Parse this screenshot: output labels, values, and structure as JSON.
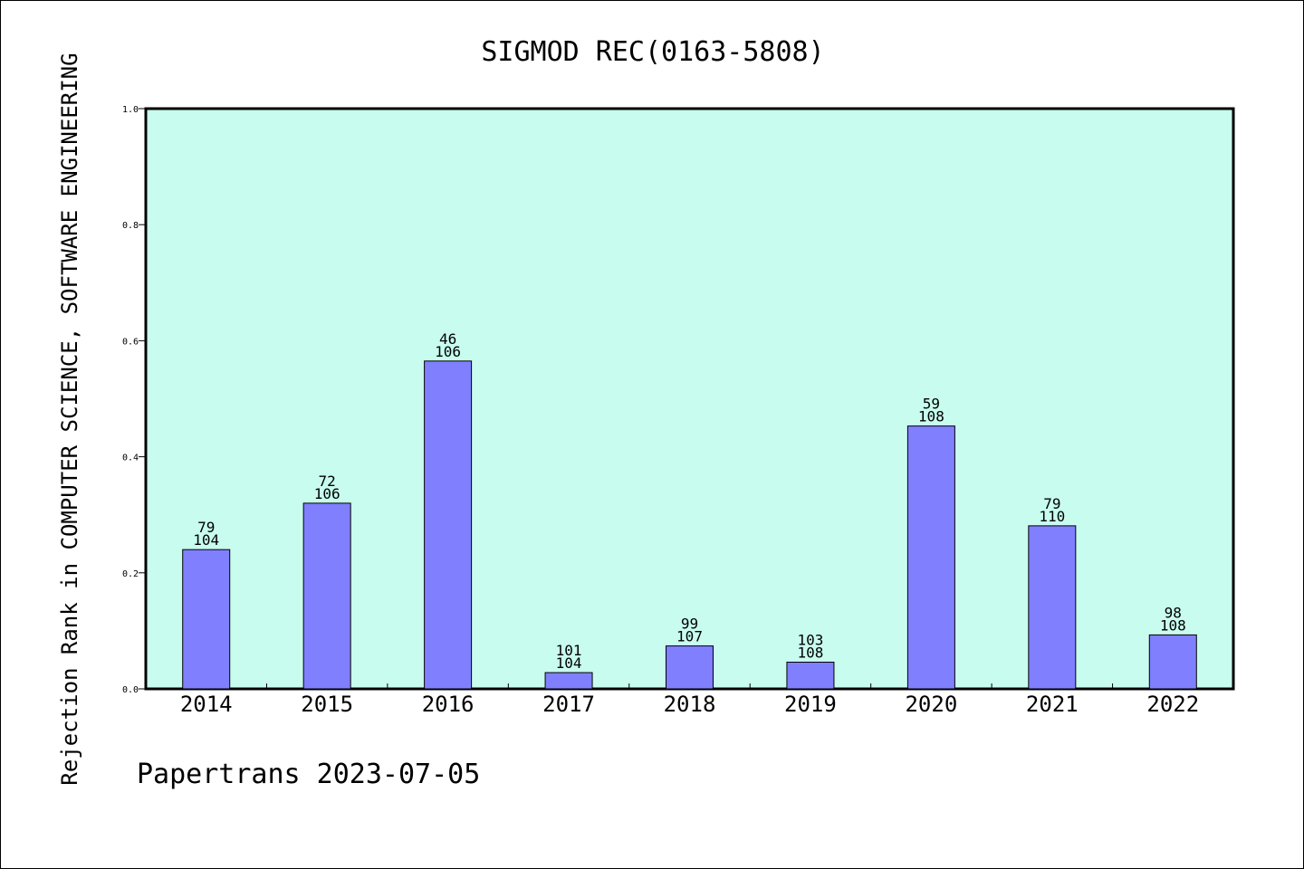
{
  "chart_data": {
    "type": "bar",
    "title": "SIGMOD REC(0163-5808)",
    "xlabel": "",
    "ylabel": "Rejection Rank in COMPUTER SCIENCE, SOFTWARE ENGINEERING",
    "ylim": [
      0,
      1.0
    ],
    "yticks": [
      "0.0",
      "0.2",
      "0.4",
      "0.6",
      "0.8",
      "1.0"
    ],
    "categories": [
      "2014",
      "2015",
      "2016",
      "2017",
      "2018",
      "2019",
      "2020",
      "2021",
      "2022"
    ],
    "values": [
      0.24,
      0.32,
      0.565,
      0.028,
      0.074,
      0.046,
      0.453,
      0.281,
      0.093
    ],
    "bar_labels": [
      {
        "rank": "79",
        "total": "104"
      },
      {
        "rank": "72",
        "total": "106"
      },
      {
        "rank": "46",
        "total": "106"
      },
      {
        "rank": "101",
        "total": "104"
      },
      {
        "rank": "99",
        "total": "107"
      },
      {
        "rank": "103",
        "total": "108"
      },
      {
        "rank": "59",
        "total": "108"
      },
      {
        "rank": "79",
        "total": "110"
      },
      {
        "rank": "98",
        "total": "108"
      }
    ],
    "grid": false,
    "legend": "none",
    "colors": {
      "plot_background": "#c8fcee",
      "bar_fill": "#8080ff",
      "bar_stroke": "#000000"
    }
  },
  "footer": "Papertrans 2023-07-05"
}
